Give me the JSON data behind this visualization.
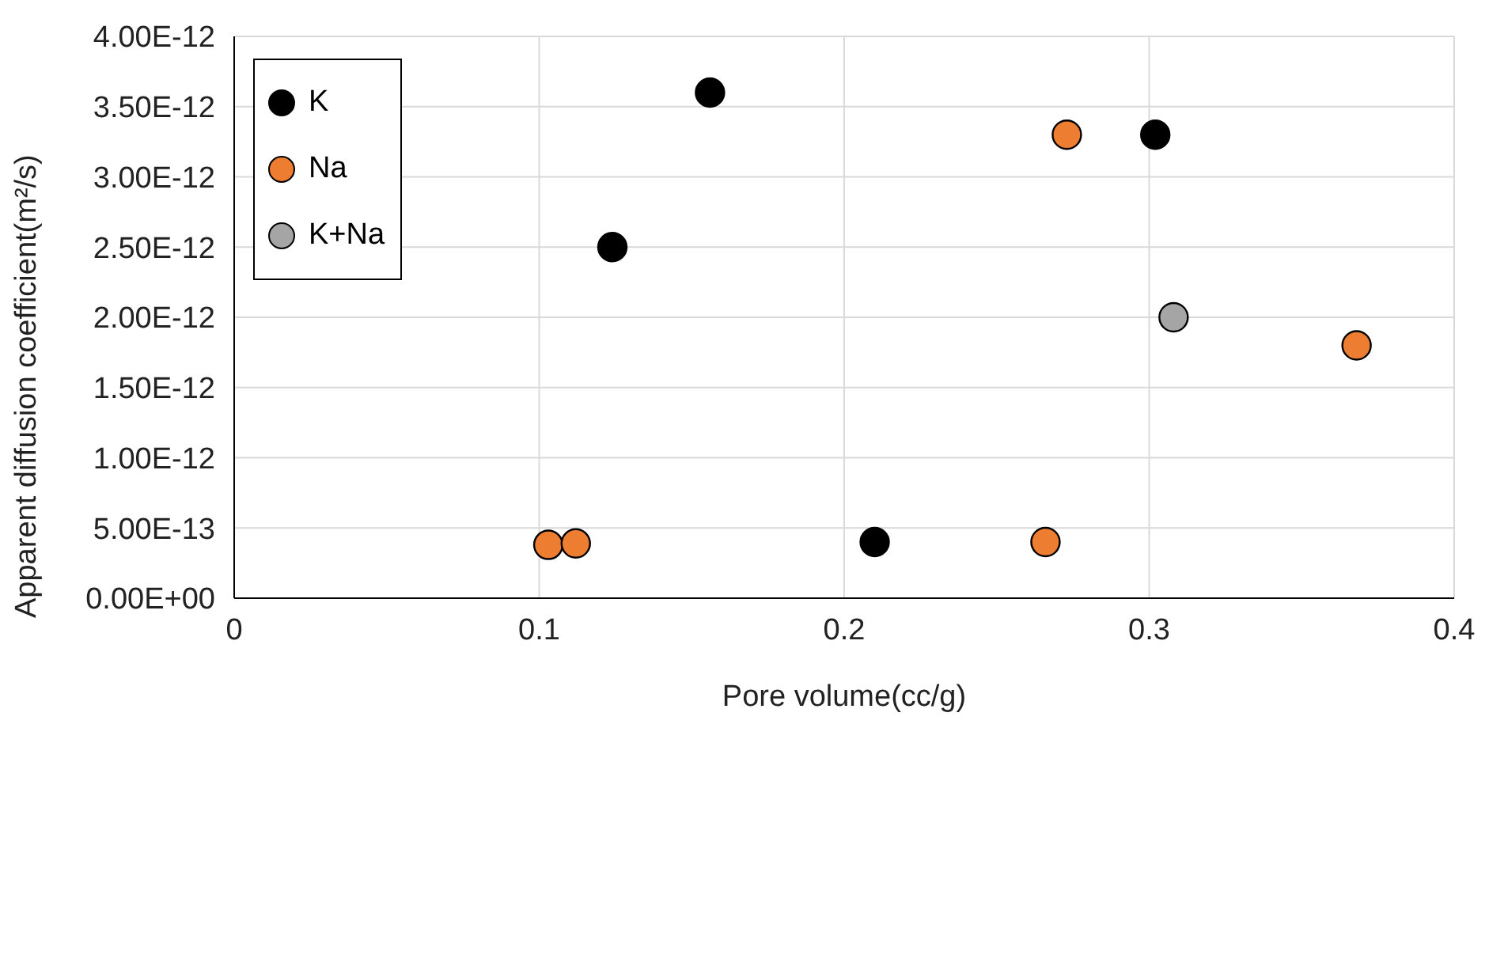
{
  "chart_data": {
    "type": "scatter",
    "xlabel": "Pore volume(cc/g)",
    "ylabel": "Apparent diffusion coefficient(m²/s)",
    "series": [
      {
        "name": "K",
        "color": "#000000",
        "x": [
          0.124,
          0.156,
          0.21,
          0.302
        ],
        "values": [
          2.5e-12,
          3.6e-12,
          4e-13,
          3.3e-12
        ]
      },
      {
        "name": "Na",
        "color": "#ed7d31",
        "x": [
          0.103,
          0.112,
          0.266,
          0.273,
          0.368
        ],
        "values": [
          3.8e-13,
          3.9e-13,
          4e-13,
          3.3e-12,
          1.8e-12
        ]
      },
      {
        "name": "K+Na",
        "color": "#a5a5a5",
        "x": [
          0.308
        ],
        "values": [
          2e-12
        ]
      }
    ],
    "xlim": [
      0,
      0.4
    ],
    "xticks": [
      0,
      0.1,
      0.2,
      0.3,
      0.4
    ],
    "ylim": [
      0,
      4e-12
    ],
    "yticks": [
      {
        "value": 0,
        "label": "0.00E+00"
      },
      {
        "value": 5e-13,
        "label": "5.00E-13"
      },
      {
        "value": 1e-12,
        "label": "1.00E-12"
      },
      {
        "value": 1.5e-12,
        "label": "1.50E-12"
      },
      {
        "value": 2e-12,
        "label": "2.00E-12"
      },
      {
        "value": 2.5e-12,
        "label": "2.50E-12"
      },
      {
        "value": 3e-12,
        "label": "3.00E-12"
      },
      {
        "value": 3.5e-12,
        "label": "3.50E-12"
      },
      {
        "value": 4e-12,
        "label": "4.00E-12"
      }
    ],
    "grid": true,
    "legend": "top left",
    "marker": "circle"
  }
}
